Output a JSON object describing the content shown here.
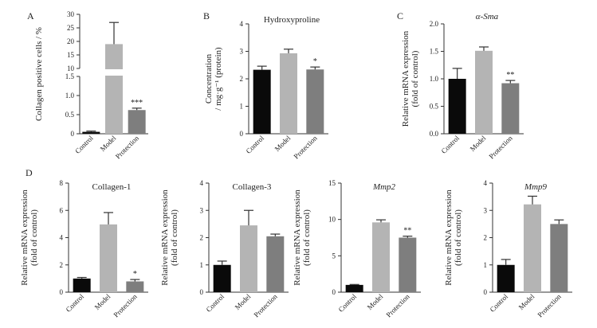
{
  "figure": {
    "colors": {
      "Control": "#0a0a0a",
      "Model": "#b4b4b4",
      "Protection": "#7e7e7e"
    }
  },
  "chart_data": [
    {
      "id": "A",
      "panel_letter": "A",
      "type": "bar",
      "title": "",
      "title_italic": false,
      "ylabel": [
        "Collagen positive cells / %"
      ],
      "categories": [
        "Control",
        "Model",
        "Protection"
      ],
      "values": [
        0.05,
        19,
        0.62
      ],
      "errors": [
        0.02,
        8,
        0.05
      ],
      "significance": [
        "",
        "",
        "***"
      ],
      "broken_axis": true,
      "lower_ylim": [
        0,
        1.5
      ],
      "upper_ylim": [
        10,
        30
      ],
      "lower_ticks": [
        0,
        0.5,
        1.0,
        1.5
      ],
      "lower_tick_labels": [
        "0",
        "0.5",
        "1.0",
        "1.5"
      ],
      "upper_ticks": [
        10,
        15,
        20,
        25,
        30
      ],
      "upper_tick_labels": [
        "10",
        "15",
        "20",
        "25",
        "30"
      ]
    },
    {
      "id": "B",
      "panel_letter": "B",
      "type": "bar",
      "title": "Hydroxyproline",
      "title_italic": false,
      "ylabel": [
        "Concentration",
        "/ mg·g⁻¹ (protein)"
      ],
      "categories": [
        "Control",
        "Model",
        "Protection"
      ],
      "values": [
        2.33,
        2.93,
        2.34
      ],
      "errors": [
        0.13,
        0.15,
        0.09
      ],
      "significance": [
        "",
        "",
        "*"
      ],
      "ylim": [
        0,
        4
      ],
      "ticks": [
        0,
        1,
        2,
        3,
        4
      ],
      "tick_labels": [
        "0",
        "1",
        "2",
        "3",
        "4"
      ]
    },
    {
      "id": "C",
      "panel_letter": "C",
      "type": "bar",
      "title": "α-Sma",
      "title_italic": true,
      "ylabel": [
        "Relative mRNA expression",
        "(fold of control)"
      ],
      "categories": [
        "Control",
        "Model",
        "Protection"
      ],
      "values": [
        1.0,
        1.51,
        0.92
      ],
      "errors": [
        0.19,
        0.07,
        0.05
      ],
      "significance": [
        "",
        "",
        "**"
      ],
      "ylim": [
        0,
        2.0
      ],
      "ticks": [
        0,
        0.5,
        1.0,
        1.5,
        2.0
      ],
      "tick_labels": [
        "0.0",
        "0.5",
        "1.0",
        "1.5",
        "2.0"
      ]
    },
    {
      "id": "D1",
      "panel_letter": "D",
      "type": "bar",
      "title": "Collagen-1",
      "title_italic": false,
      "ylabel": [
        "Relative mRNA expression",
        "(fold of control)"
      ],
      "categories": [
        "Control",
        "Model",
        "Protection"
      ],
      "values": [
        1.0,
        4.97,
        0.79
      ],
      "errors": [
        0.08,
        0.87,
        0.14
      ],
      "significance": [
        "",
        "",
        "*"
      ],
      "ylim": [
        0,
        8
      ],
      "ticks": [
        0,
        2,
        4,
        6,
        8
      ],
      "tick_labels": [
        "0",
        "2",
        "4",
        "6",
        "8"
      ]
    },
    {
      "id": "D2",
      "panel_letter": "",
      "type": "bar",
      "title": "Collagen-3",
      "title_italic": false,
      "ylabel": [
        "Relative mRNA expression",
        "(fold of control)"
      ],
      "categories": [
        "Control",
        "Model",
        "Protection"
      ],
      "values": [
        1.0,
        2.45,
        2.05
      ],
      "errors": [
        0.14,
        0.55,
        0.08
      ],
      "significance": [
        "",
        "",
        ""
      ],
      "ylim": [
        0,
        4
      ],
      "ticks": [
        0,
        1,
        2,
        3,
        4
      ],
      "tick_labels": [
        "0",
        "1",
        "2",
        "3",
        "4"
      ]
    },
    {
      "id": "D3",
      "panel_letter": "",
      "type": "bar",
      "title": "Mmp2",
      "title_italic": true,
      "ylabel": [
        "Relative mRNA expression",
        "(fold of control)"
      ],
      "categories": [
        "Control",
        "Model",
        "Protection"
      ],
      "values": [
        1.0,
        9.6,
        7.5
      ],
      "errors": [
        0.06,
        0.35,
        0.2
      ],
      "significance": [
        "",
        "",
        "**"
      ],
      "ylim": [
        0,
        15
      ],
      "ticks": [
        0,
        5,
        10,
        15
      ],
      "tick_labels": [
        "0",
        "5",
        "10",
        "15"
      ]
    },
    {
      "id": "D4",
      "panel_letter": "",
      "type": "bar",
      "title": "Mmp9",
      "title_italic": true,
      "ylabel": [
        "Relative mRNA expression",
        "(fold of control)"
      ],
      "categories": [
        "Control",
        "Model",
        "Protection"
      ],
      "values": [
        1.0,
        3.22,
        2.5
      ],
      "errors": [
        0.2,
        0.3,
        0.15
      ],
      "significance": [
        "",
        "",
        ""
      ],
      "ylim": [
        0,
        4
      ],
      "ticks": [
        0,
        1,
        2,
        3,
        4
      ],
      "tick_labels": [
        "0",
        "1",
        "2",
        "3",
        "4"
      ]
    }
  ]
}
